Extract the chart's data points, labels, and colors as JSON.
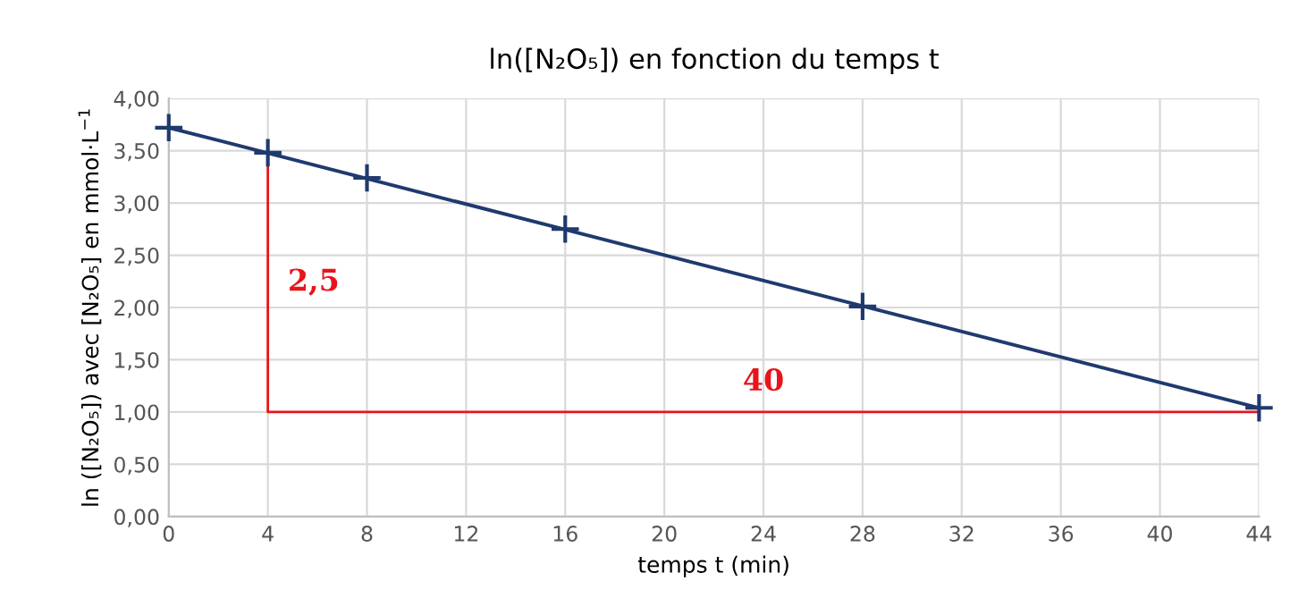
{
  "chart_data": {
    "type": "scatter",
    "title": "ln([N₂O₅]) en fonction du temps t",
    "xlabel": "temps t (min)",
    "ylabel": "ln ([N₂O₅]) avec [N₂O₅] en mmol·L$^{−1}$",
    "series": [
      {
        "type": "line",
        "color": "#1f3a6e",
        "x": [
          0,
          44
        ],
        "values": [
          3.72,
          1.04
        ],
        "marker": "none"
      },
      {
        "type": "line",
        "color": "#e8141c",
        "x": [
          4,
          4,
          44
        ],
        "values": [
          3.48,
          1.0,
          1.0
        ],
        "marker": "none"
      },
      {
        "color": "#1f3a6e",
        "x": [
          0,
          4,
          8,
          16,
          28,
          44
        ],
        "values": [
          3.72,
          3.48,
          3.24,
          2.75,
          2.01,
          1.04
        ],
        "marker": "cross"
      }
    ],
    "annotations": [
      "2,5",
      "40"
    ],
    "xlim": [
      0,
      44
    ],
    "xticks": [
      0,
      4,
      8,
      12,
      16,
      20,
      24,
      28,
      32,
      36,
      40,
      44
    ],
    "ylim": [
      0,
      4
    ],
    "yticks": [
      {
        "value": 0,
        "label": "0,00"
      },
      {
        "value": 0.5,
        "label": "0,50"
      },
      {
        "value": 1,
        "label": "1,00"
      },
      {
        "value": 1.5,
        "label": "1,50"
      },
      {
        "value": 2,
        "label": "2,00"
      },
      {
        "value": 2.5,
        "label": "2,50"
      },
      {
        "value": 3,
        "label": "3,00"
      },
      {
        "value": 3.5,
        "label": "3,50"
      },
      {
        "value": 4,
        "label": "4,00"
      }
    ],
    "grid": true
  }
}
